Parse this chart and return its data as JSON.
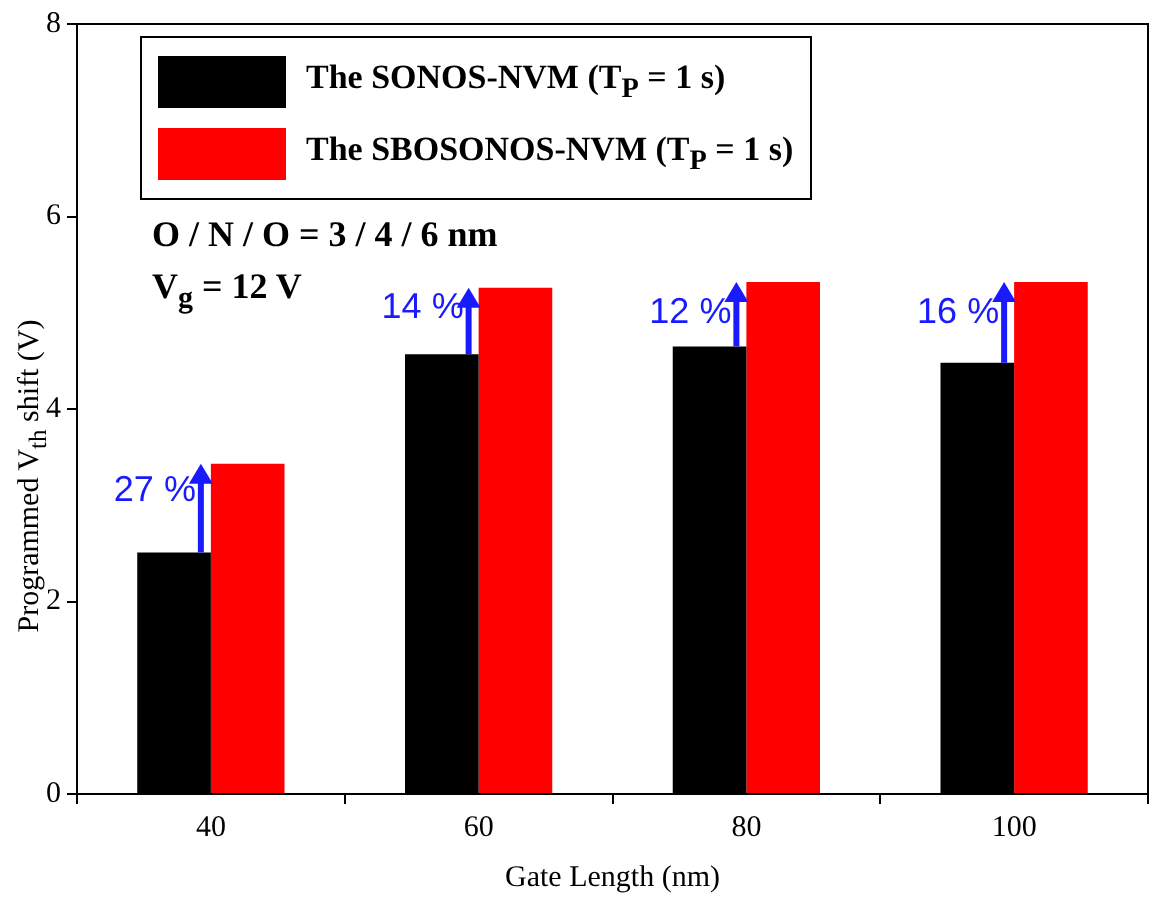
{
  "chart_data": {
    "type": "bar",
    "xlabel": "Gate Length (nm)",
    "ylabel": "Programmed V$_{th}$ shift (V)",
    "categories": [
      "40",
      "60",
      "80",
      "100"
    ],
    "series": [
      {
        "name": "The SONOS-NVM (T$_{P}$ = 1 s)",
        "color": "#000000",
        "values": [
          2.51,
          4.57,
          4.65,
          4.48
        ]
      },
      {
        "name": "The SBOSONOS-NVM (T$_{P}$ = 1 s)",
        "color": "#ff0000",
        "values": [
          3.43,
          5.26,
          5.32,
          5.32
        ]
      }
    ],
    "ylim": [
      0,
      8
    ],
    "yticks": [
      0,
      2,
      4,
      6,
      8
    ],
    "grid": false,
    "legend": "top left",
    "annotations": [
      "O / N / O = 3 / 4 / 6 nm",
      "V$_{g}$ = 12 V",
      {
        "text": "27 %",
        "x": "40",
        "y": 3.15
      },
      {
        "text": "14 %",
        "x": "60",
        "y": 5.05
      },
      {
        "text": "12 %",
        "x": "80",
        "y": 5.0
      },
      {
        "text": "16 %",
        "x": "100",
        "y": 5.0
      }
    ]
  }
}
